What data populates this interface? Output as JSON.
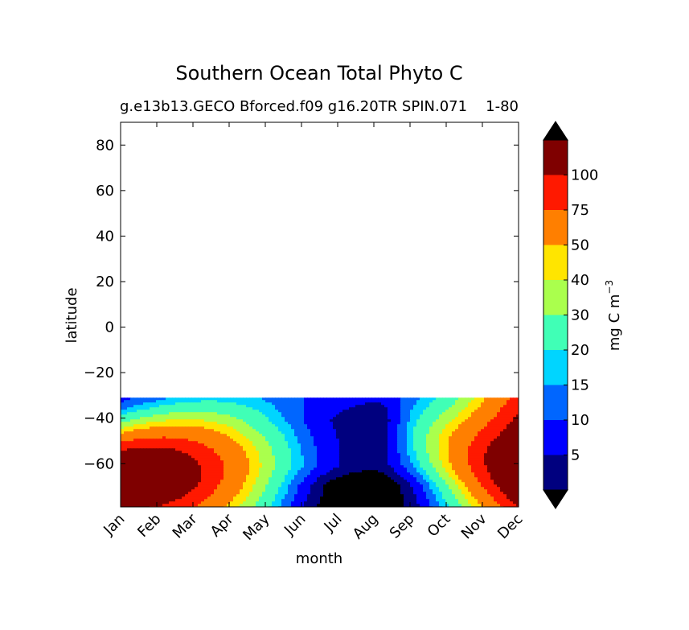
{
  "chart_data": {
    "type": "heatmap",
    "subtype": "filled-contour",
    "title": "Southern Ocean Total Phyto C",
    "subtitle_left": "g.e13b13.GECO Bforced.f09 g16.20TR SPIN.071",
    "subtitle_right": "1-80",
    "xlabel": "month",
    "ylabel": "latitude",
    "x_categories": [
      "Jan",
      "Feb",
      "Mar",
      "Apr",
      "May",
      "Jun",
      "Jul",
      "Aug",
      "Sep",
      "Oct",
      "Nov",
      "Dec"
    ],
    "yticks": [
      80,
      60,
      40,
      20,
      0,
      -20,
      -40,
      -60
    ],
    "ylim": [
      -79,
      90
    ],
    "data_lat_range": [
      -79,
      -31
    ],
    "colorbar": {
      "label": "mg C m",
      "label_superscript": "−3",
      "levels": [
        5,
        10,
        15,
        20,
        30,
        40,
        50,
        75,
        100
      ],
      "level_labels": [
        "5",
        "10",
        "15",
        "20",
        "30",
        "40",
        "50",
        "75",
        "100"
      ],
      "extend": "both",
      "colors": [
        "#00007f",
        "#0000ff",
        "#0066ff",
        "#00d5ff",
        "#40ffb6",
        "#aaff4d",
        "#ffe500",
        "#ff7f00",
        "#ff1900",
        "#7f0000"
      ],
      "under_color": "#000000",
      "over_color": "#000000"
    },
    "regions": [
      {
        "band": "-31 to -79",
        "months": "Jan",
        "value_range": ">100 near -70, 20-75 at -45 to -55"
      },
      {
        "band": "-45 to -79",
        "months": "Feb-Mar",
        "value_range": "50-100 decreasing poleward shift"
      },
      {
        "band": "-79 to -31",
        "months": "May-Aug",
        "value_range": "<5 to 10"
      },
      {
        "band": "-35 to -55",
        "months": "Sep-Oct",
        "value_range": "15-50"
      },
      {
        "band": "-50 to -79",
        "months": "Nov-Dec",
        "value_range": "50->100"
      }
    ]
  }
}
